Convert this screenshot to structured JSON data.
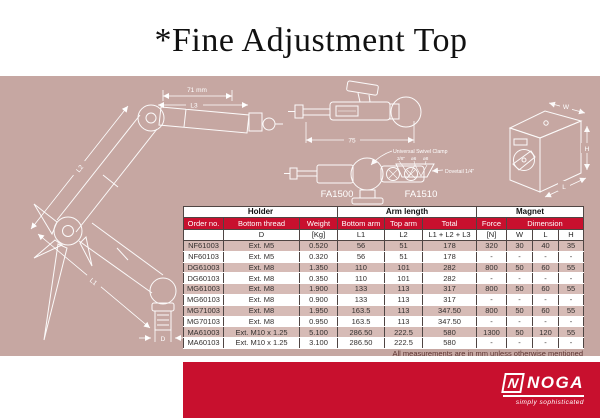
{
  "title": "*Fine Adjustment Top",
  "diagram": {
    "labels": {
      "dim_71mm": "71 mm",
      "dim_l3": "L3",
      "dim_l2": "L2",
      "dim_l1": "L1",
      "dim_d": "D",
      "dim_75": "75",
      "universal_swivel_clamp": "Universal Swivel Clamp",
      "size_3_8": "3/8\"",
      "size_d6": "ø6",
      "size_d8": "ø8",
      "dovetail": "Dovetail 1/4\"",
      "model_fa1500": "FA1500",
      "model_fa1510": "FA1510",
      "dim_w": "W",
      "dim_h": "H",
      "dim_l": "L"
    }
  },
  "table": {
    "groups": [
      {
        "label": "Holder",
        "span": 3
      },
      {
        "label": "Arm length",
        "span": 3
      },
      {
        "label": "Magnet",
        "span": 4
      }
    ],
    "columns": [
      "Order no.",
      "Bottom thread",
      "Weight",
      "Bottom arm",
      "Top arm",
      "Total",
      "Force",
      "Dimension"
    ],
    "subheaders": [
      "",
      "D",
      "[Kg]",
      "L1",
      "L2",
      "L1 + L2 + L3",
      "[N]",
      "W",
      "L",
      "H"
    ],
    "rows": [
      [
        "NF61003",
        "Ext. M5",
        "0.520",
        "56",
        "51",
        "178",
        "320",
        "30",
        "40",
        "35"
      ],
      [
        "NF60103",
        "Ext. M5",
        "0.320",
        "56",
        "51",
        "178",
        "-",
        "-",
        "-",
        "-"
      ],
      [
        "DG61003",
        "Ext. M8",
        "1.350",
        "110",
        "101",
        "282",
        "800",
        "50",
        "60",
        "55"
      ],
      [
        "DG60103",
        "Ext. M8",
        "0.350",
        "110",
        "101",
        "282",
        "-",
        "-",
        "-",
        "-"
      ],
      [
        "MG61003",
        "Ext. M8",
        "1.900",
        "133",
        "113",
        "317",
        "800",
        "50",
        "60",
        "55"
      ],
      [
        "MG60103",
        "Ext. M8",
        "0.900",
        "133",
        "113",
        "317",
        "-",
        "-",
        "-",
        "-"
      ],
      [
        "MG71003",
        "Ext. M8",
        "1.950",
        "163.5",
        "113",
        "347.50",
        "800",
        "50",
        "60",
        "55"
      ],
      [
        "MG70103",
        "Ext. M8",
        "0.950",
        "163.5",
        "113",
        "347.50",
        "-",
        "-",
        "-",
        "-"
      ],
      [
        "MA61003",
        "Ext. M10 x 1.25",
        "5.100",
        "286.50",
        "222.5",
        "580",
        "1300",
        "50",
        "120",
        "55"
      ],
      [
        "MA60103",
        "Ext. M10 x 1.25",
        "3.100",
        "286.50",
        "222.5",
        "580",
        "-",
        "-",
        "-",
        "-"
      ]
    ],
    "footnote": "All measurements are in mm unless otherwise mentioned"
  },
  "footer": {
    "brand_letter": "N",
    "brand": "NOGA",
    "tagline": "simply sophisticated"
  },
  "colors": {
    "accent_red": "#c8102e",
    "panel_pink": "#c6a7a2",
    "row_pink": "#d6bbb6"
  }
}
